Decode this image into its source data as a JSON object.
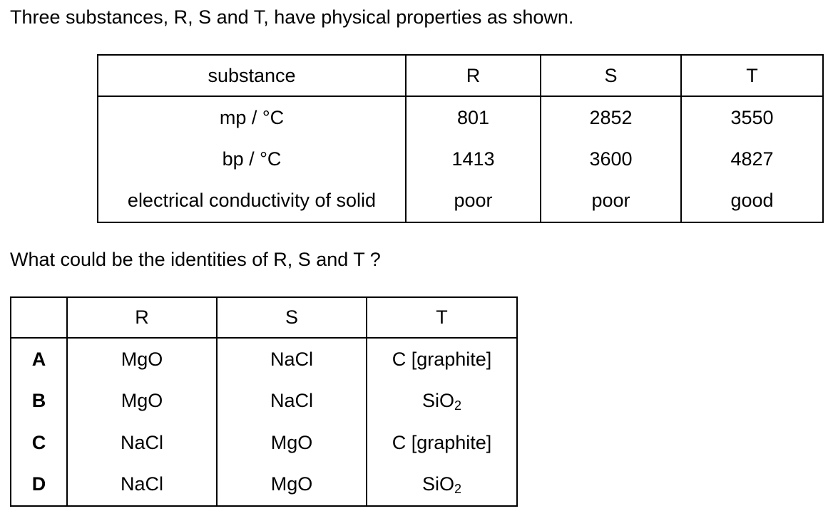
{
  "intro": "Three substances, R, S and T, have physical properties as shown.",
  "properties_table": {
    "headers": [
      "substance",
      "R",
      "S",
      "T"
    ],
    "rows": [
      {
        "label": "mp / °C",
        "values": [
          "801",
          "2852",
          "3550"
        ]
      },
      {
        "label": "bp / °C",
        "values": [
          "1413",
          "3600",
          "4827"
        ]
      },
      {
        "label": "electrical conductivity of solid",
        "values": [
          "poor",
          "poor",
          "good"
        ]
      }
    ]
  },
  "question": "What could be the identities of R, S and T ?",
  "answers_table": {
    "headers": [
      "",
      "R",
      "S",
      "T"
    ],
    "rows": [
      {
        "option": "A",
        "R": "MgO",
        "S": "NaCl",
        "T": "C [graphite]"
      },
      {
        "option": "B",
        "R": "MgO",
        "S": "NaCl",
        "T_main": "SiO",
        "T_sub": "2"
      },
      {
        "option": "C",
        "R": "NaCl",
        "S": "MgO",
        "T": "C [graphite]"
      },
      {
        "option": "D",
        "R": "NaCl",
        "S": "MgO",
        "T_main": "SiO",
        "T_sub": "2"
      }
    ]
  }
}
